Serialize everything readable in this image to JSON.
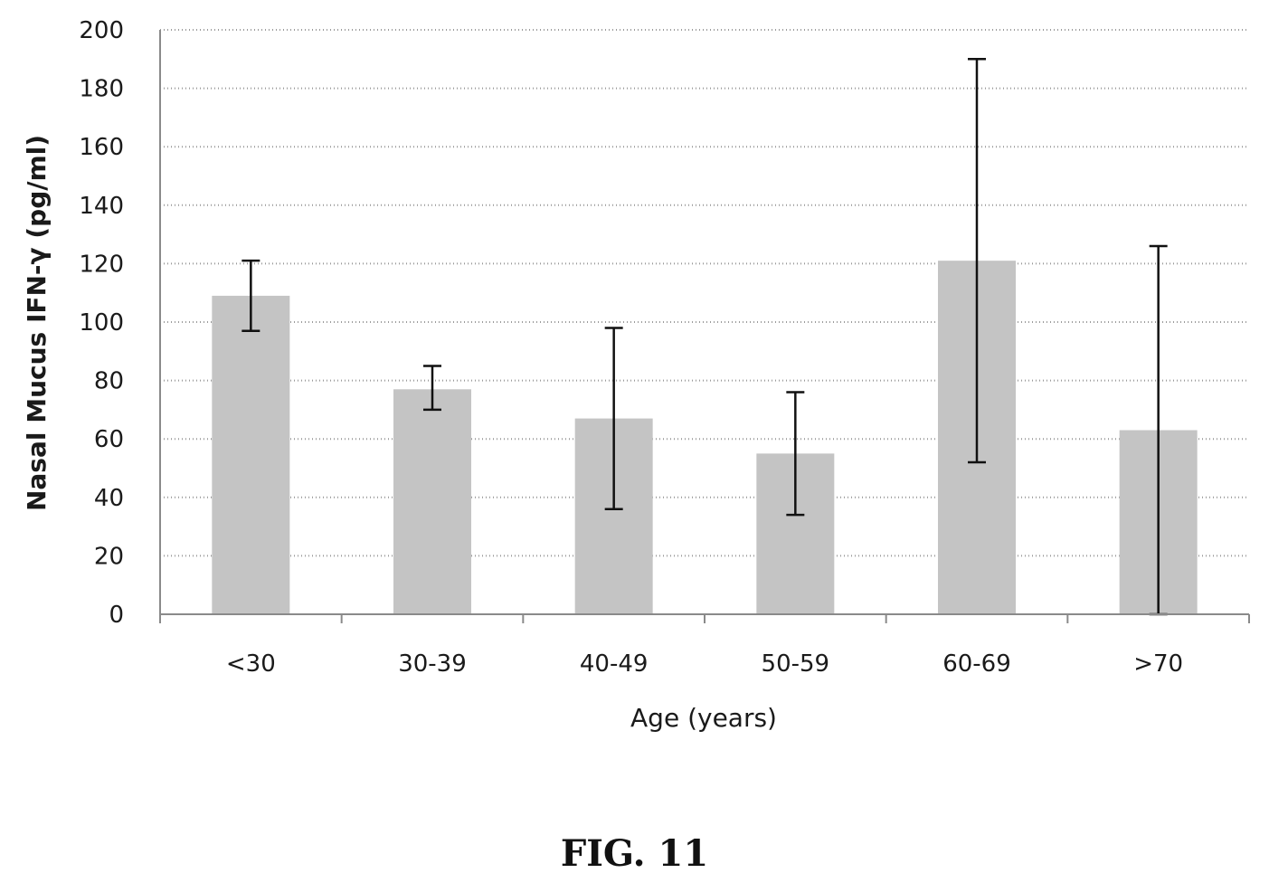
{
  "chart_data": {
    "type": "bar",
    "categories": [
      "<30",
      "30-39",
      "40-49",
      "50-59",
      "60-69",
      ">70"
    ],
    "values": [
      109,
      77,
      67,
      55,
      121,
      63
    ],
    "error_bars": [
      {
        "low": 97,
        "high": 121
      },
      {
        "low": 70,
        "high": 85
      },
      {
        "low": 36,
        "high": 98
      },
      {
        "low": 34,
        "high": 76
      },
      {
        "low": 52,
        "high": 190
      },
      {
        "low": 0,
        "high": 126
      }
    ],
    "title": "",
    "xlabel": "Age (years)",
    "ylabel": "Nasal Mucus IFN-γ (pg/ml)",
    "ylim": [
      0,
      200
    ],
    "yticks": [
      0,
      20,
      40,
      60,
      80,
      100,
      120,
      140,
      160,
      180,
      200
    ],
    "grid": true,
    "bar_color": "#c4c4c4"
  },
  "figure_caption": "FIG. 11"
}
